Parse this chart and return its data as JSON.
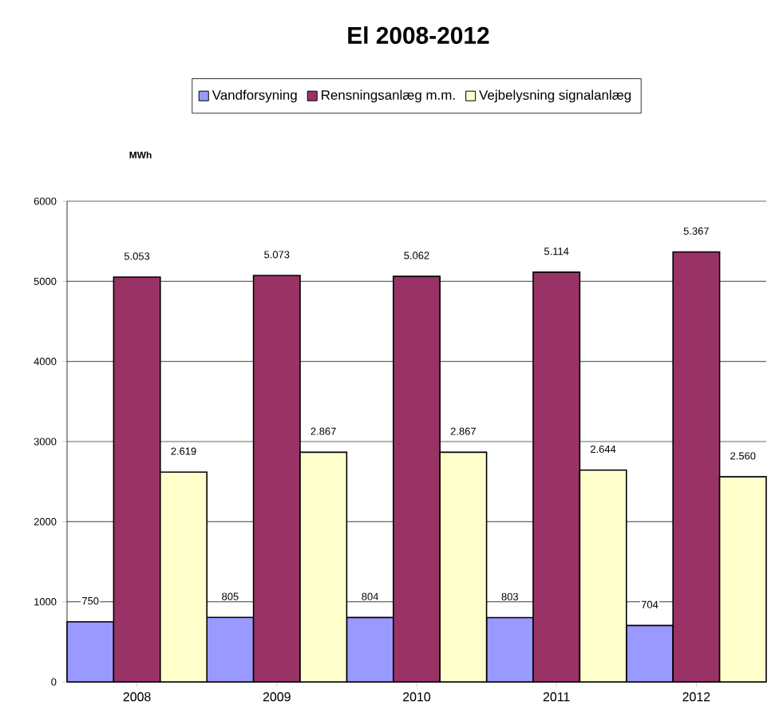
{
  "chart_data": {
    "type": "bar",
    "title": "El 2008-2012",
    "ylabel": "MWh",
    "categories": [
      "2008",
      "2009",
      "2010",
      "2011",
      "2012"
    ],
    "series": [
      {
        "name": "Vandforsyning",
        "color": "#9999ff",
        "values": [
          750,
          805,
          804,
          803,
          704
        ],
        "value_labels": [
          "750",
          "805",
          "804",
          "803",
          "704"
        ]
      },
      {
        "name": "Rensningsanlæg m.m.",
        "color": "#993366",
        "values": [
          5053,
          5073,
          5062,
          5114,
          5367
        ],
        "value_labels": [
          "5.053",
          "5.073",
          "5.062",
          "5.114",
          "5.367"
        ]
      },
      {
        "name": "Vejbelysning signalanlæg",
        "color": "#ffffcc",
        "values": [
          2619,
          2867,
          2867,
          2644,
          2560
        ],
        "value_labels": [
          "2.619",
          "2.867",
          "2.867",
          "2.644",
          "2.560"
        ]
      }
    ],
    "ylim": [
      0,
      6000
    ],
    "yticks": [
      0,
      1000,
      2000,
      3000,
      4000,
      5000,
      6000
    ],
    "grid": "y",
    "legend": "top"
  }
}
